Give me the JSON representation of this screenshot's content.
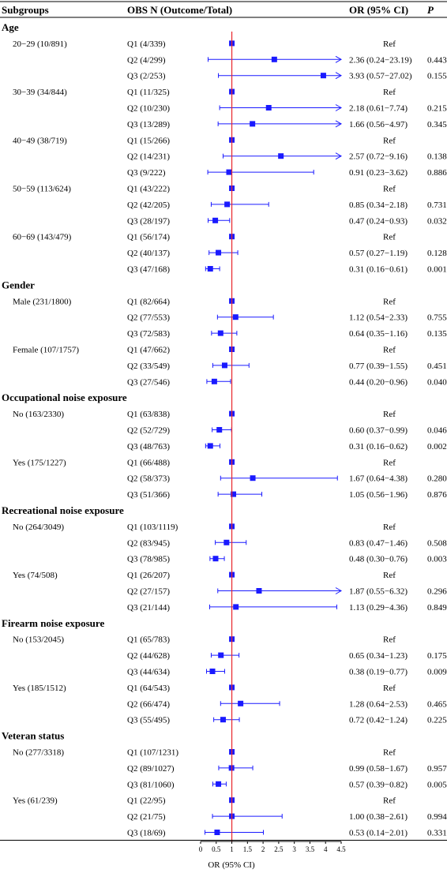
{
  "chart_data": {
    "type": "forest",
    "headers": {
      "subgroup": "Subgroups",
      "group": "OBS  N (Outcome/Total)",
      "or": "OR (95% CI)",
      "p": "P"
    },
    "xlabel": "OR (95% CI)",
    "xlim": [
      0,
      4.5
    ],
    "x_ticks": [
      "0",
      "0.5",
      "1",
      "1.5",
      "2",
      "2.5",
      "3",
      "3.5",
      "4",
      "4.5"
    ],
    "reference_line": 1,
    "marker_color": "#1a1aff",
    "ref_line_color": "#e8262b",
    "sections": [
      {
        "title": "Age",
        "subgroups": [
          {
            "label": "20−29 (10/891)",
            "rows": [
              {
                "group": "Q1 (4/339)",
                "or": 1,
                "lo": 1,
                "hi": 1,
                "text": "Ref",
                "p": ""
              },
              {
                "group": "Q2 (4/299)",
                "or": 2.36,
                "lo": 0.24,
                "hi": 23.19,
                "text": "2.36 (0.24−23.19)",
                "p": "0.443"
              },
              {
                "group": "Q3 (2/253)",
                "or": 3.93,
                "lo": 0.57,
                "hi": 27.02,
                "text": "3.93 (0.57−27.02)",
                "p": "0.155"
              }
            ]
          },
          {
            "label": "30−39 (34/844)",
            "rows": [
              {
                "group": "Q1 (11/325)",
                "or": 1,
                "lo": 1,
                "hi": 1,
                "text": "Ref",
                "p": ""
              },
              {
                "group": "Q2 (10/230)",
                "or": 2.18,
                "lo": 0.61,
                "hi": 7.74,
                "text": "2.18 (0.61−7.74)",
                "p": "0.215"
              },
              {
                "group": "Q3 (13/289)",
                "or": 1.66,
                "lo": 0.56,
                "hi": 4.97,
                "text": "1.66 (0.56−4.97)",
                "p": "0.345"
              }
            ]
          },
          {
            "label": "40−49 (38/719)",
            "rows": [
              {
                "group": "Q1 (15/266)",
                "or": 1,
                "lo": 1,
                "hi": 1,
                "text": "Ref",
                "p": ""
              },
              {
                "group": "Q2 (14/231)",
                "or": 2.57,
                "lo": 0.72,
                "hi": 9.16,
                "text": "2.57 (0.72−9.16)",
                "p": "0.138"
              },
              {
                "group": "Q3 (9/222)",
                "or": 0.91,
                "lo": 0.23,
                "hi": 3.62,
                "text": "0.91 (0.23−3.62)",
                "p": "0.886"
              }
            ]
          },
          {
            "label": "50−59 (113/624)",
            "rows": [
              {
                "group": "Q1 (43/222)",
                "or": 1,
                "lo": 1,
                "hi": 1,
                "text": "Ref",
                "p": ""
              },
              {
                "group": "Q2 (42/205)",
                "or": 0.85,
                "lo": 0.34,
                "hi": 2.18,
                "text": "0.85 (0.34−2.18)",
                "p": "0.731"
              },
              {
                "group": "Q3 (28/197)",
                "or": 0.47,
                "lo": 0.24,
                "hi": 0.93,
                "text": "0.47 (0.24−0.93)",
                "p": "0.032"
              }
            ]
          },
          {
            "label": "60−69 (143/479)",
            "rows": [
              {
                "group": "Q1 (56/174)",
                "or": 1,
                "lo": 1,
                "hi": 1,
                "text": "Ref",
                "p": ""
              },
              {
                "group": "Q2 (40/137)",
                "or": 0.57,
                "lo": 0.27,
                "hi": 1.19,
                "text": "0.57 (0.27−1.19)",
                "p": "0.128"
              },
              {
                "group": "Q3 (47/168)",
                "or": 0.31,
                "lo": 0.16,
                "hi": 0.61,
                "text": "0.31 (0.16−0.61)",
                "p": "0.001"
              }
            ]
          }
        ]
      },
      {
        "title": "Gender",
        "subgroups": [
          {
            "label": "Male (231/1800)",
            "rows": [
              {
                "group": "Q1 (82/664)",
                "or": 1,
                "lo": 1,
                "hi": 1,
                "text": "Ref",
                "p": ""
              },
              {
                "group": "Q2 (77/553)",
                "or": 1.12,
                "lo": 0.54,
                "hi": 2.33,
                "text": "1.12 (0.54−2.33)",
                "p": "0.755"
              },
              {
                "group": "Q3 (72/583)",
                "or": 0.64,
                "lo": 0.35,
                "hi": 1.16,
                "text": "0.64 (0.35−1.16)",
                "p": "0.135"
              }
            ]
          },
          {
            "label": "Female (107/1757)",
            "rows": [
              {
                "group": "Q1 (47/662)",
                "or": 1,
                "lo": 1,
                "hi": 1,
                "text": "Ref",
                "p": ""
              },
              {
                "group": "Q2 (33/549)",
                "or": 0.77,
                "lo": 0.39,
                "hi": 1.55,
                "text": "0.77 (0.39−1.55)",
                "p": "0.451"
              },
              {
                "group": "Q3 (27/546)",
                "or": 0.44,
                "lo": 0.2,
                "hi": 0.96,
                "text": "0.44 (0.20−0.96)",
                "p": "0.040"
              }
            ]
          }
        ]
      },
      {
        "title": "Occupational noise exposure",
        "subgroups": [
          {
            "label": "No (163/2330)",
            "rows": [
              {
                "group": "Q1 (63/838)",
                "or": 1,
                "lo": 1,
                "hi": 1,
                "text": "Ref",
                "p": ""
              },
              {
                "group": "Q2 (52/729)",
                "or": 0.6,
                "lo": 0.37,
                "hi": 0.99,
                "text": "0.60 (0.37−0.99)",
                "p": "0.046"
              },
              {
                "group": "Q3 (48/763)",
                "or": 0.31,
                "lo": 0.16,
                "hi": 0.62,
                "text": "0.31 (0.16−0.62)",
                "p": "0.002"
              }
            ]
          },
          {
            "label": "Yes (175/1227)",
            "rows": [
              {
                "group": "Q1 (66/488)",
                "or": 1,
                "lo": 1,
                "hi": 1,
                "text": "Ref",
                "p": ""
              },
              {
                "group": "Q2 (58/373)",
                "or": 1.67,
                "lo": 0.64,
                "hi": 4.38,
                "text": "1.67 (0.64−4.38)",
                "p": "0.280"
              },
              {
                "group": "Q3 (51/366)",
                "or": 1.05,
                "lo": 0.56,
                "hi": 1.96,
                "text": "1.05 (0.56−1.96)",
                "p": "0.876"
              }
            ]
          }
        ]
      },
      {
        "title": "Recreational noise exposure",
        "subgroups": [
          {
            "label": "No (264/3049)",
            "rows": [
              {
                "group": "Q1 (103/1119)",
                "or": 1,
                "lo": 1,
                "hi": 1,
                "text": "Ref",
                "p": ""
              },
              {
                "group": "Q2 (83/945)",
                "or": 0.83,
                "lo": 0.47,
                "hi": 1.46,
                "text": "0.83 (0.47−1.46)",
                "p": "0.508"
              },
              {
                "group": "Q3 (78/985)",
                "or": 0.48,
                "lo": 0.3,
                "hi": 0.76,
                "text": "0.48 (0.30−0.76)",
                "p": "0.003"
              }
            ]
          },
          {
            "label": "Yes (74/508)",
            "rows": [
              {
                "group": "Q1 (26/207)",
                "or": 1,
                "lo": 1,
                "hi": 1,
                "text": "Ref",
                "p": ""
              },
              {
                "group": "Q2 (27/157)",
                "or": 1.87,
                "lo": 0.55,
                "hi": 6.32,
                "text": "1.87 (0.55−6.32)",
                "p": "0.296"
              },
              {
                "group": "Q3 (21/144)",
                "or": 1.13,
                "lo": 0.29,
                "hi": 4.36,
                "text": "1.13 (0.29−4.36)",
                "p": "0.849"
              }
            ]
          }
        ]
      },
      {
        "title": "Firearm noise exposure",
        "subgroups": [
          {
            "label": "No (153/2045)",
            "rows": [
              {
                "group": "Q1 (65/783)",
                "or": 1,
                "lo": 1,
                "hi": 1,
                "text": "Ref",
                "p": ""
              },
              {
                "group": "Q2 (44/628)",
                "or": 0.65,
                "lo": 0.34,
                "hi": 1.23,
                "text": "0.65 (0.34−1.23)",
                "p": "0.175"
              },
              {
                "group": "Q3 (44/634)",
                "or": 0.38,
                "lo": 0.19,
                "hi": 0.77,
                "text": "0.38 (0.19−0.77)",
                "p": "0.009"
              }
            ]
          },
          {
            "label": "Yes (185/1512)",
            "rows": [
              {
                "group": "Q1 (64/543)",
                "or": 1,
                "lo": 1,
                "hi": 1,
                "text": "Ref",
                "p": ""
              },
              {
                "group": "Q2 (66/474)",
                "or": 1.28,
                "lo": 0.64,
                "hi": 2.53,
                "text": "1.28 (0.64−2.53)",
                "p": "0.465"
              },
              {
                "group": "Q3 (55/495)",
                "or": 0.72,
                "lo": 0.42,
                "hi": 1.24,
                "text": "0.72 (0.42−1.24)",
                "p": "0.225"
              }
            ]
          }
        ]
      },
      {
        "title": "Veteran status",
        "subgroups": [
          {
            "label": "No (277/3318)",
            "rows": [
              {
                "group": "Q1 (107/1231)",
                "or": 1,
                "lo": 1,
                "hi": 1,
                "text": "Ref",
                "p": ""
              },
              {
                "group": "Q2 (89/1027)",
                "or": 0.99,
                "lo": 0.58,
                "hi": 1.67,
                "text": "0.99 (0.58−1.67)",
                "p": "0.957"
              },
              {
                "group": "Q3 (81/1060)",
                "or": 0.57,
                "lo": 0.39,
                "hi": 0.82,
                "text": "0.57 (0.39−0.82)",
                "p": "0.005"
              }
            ]
          },
          {
            "label": "Yes (61/239)",
            "rows": [
              {
                "group": "Q1 (22/95)",
                "or": 1,
                "lo": 1,
                "hi": 1,
                "text": "Ref",
                "p": ""
              },
              {
                "group": "Q2 (21/75)",
                "or": 1.0,
                "lo": 0.38,
                "hi": 2.61,
                "text": "1.00 (0.38−2.61)",
                "p": "0.994"
              },
              {
                "group": "Q3 (18/69)",
                "or": 0.53,
                "lo": 0.14,
                "hi": 2.01,
                "text": "0.53 (0.14−2.01)",
                "p": "0.331"
              }
            ]
          }
        ]
      }
    ]
  }
}
